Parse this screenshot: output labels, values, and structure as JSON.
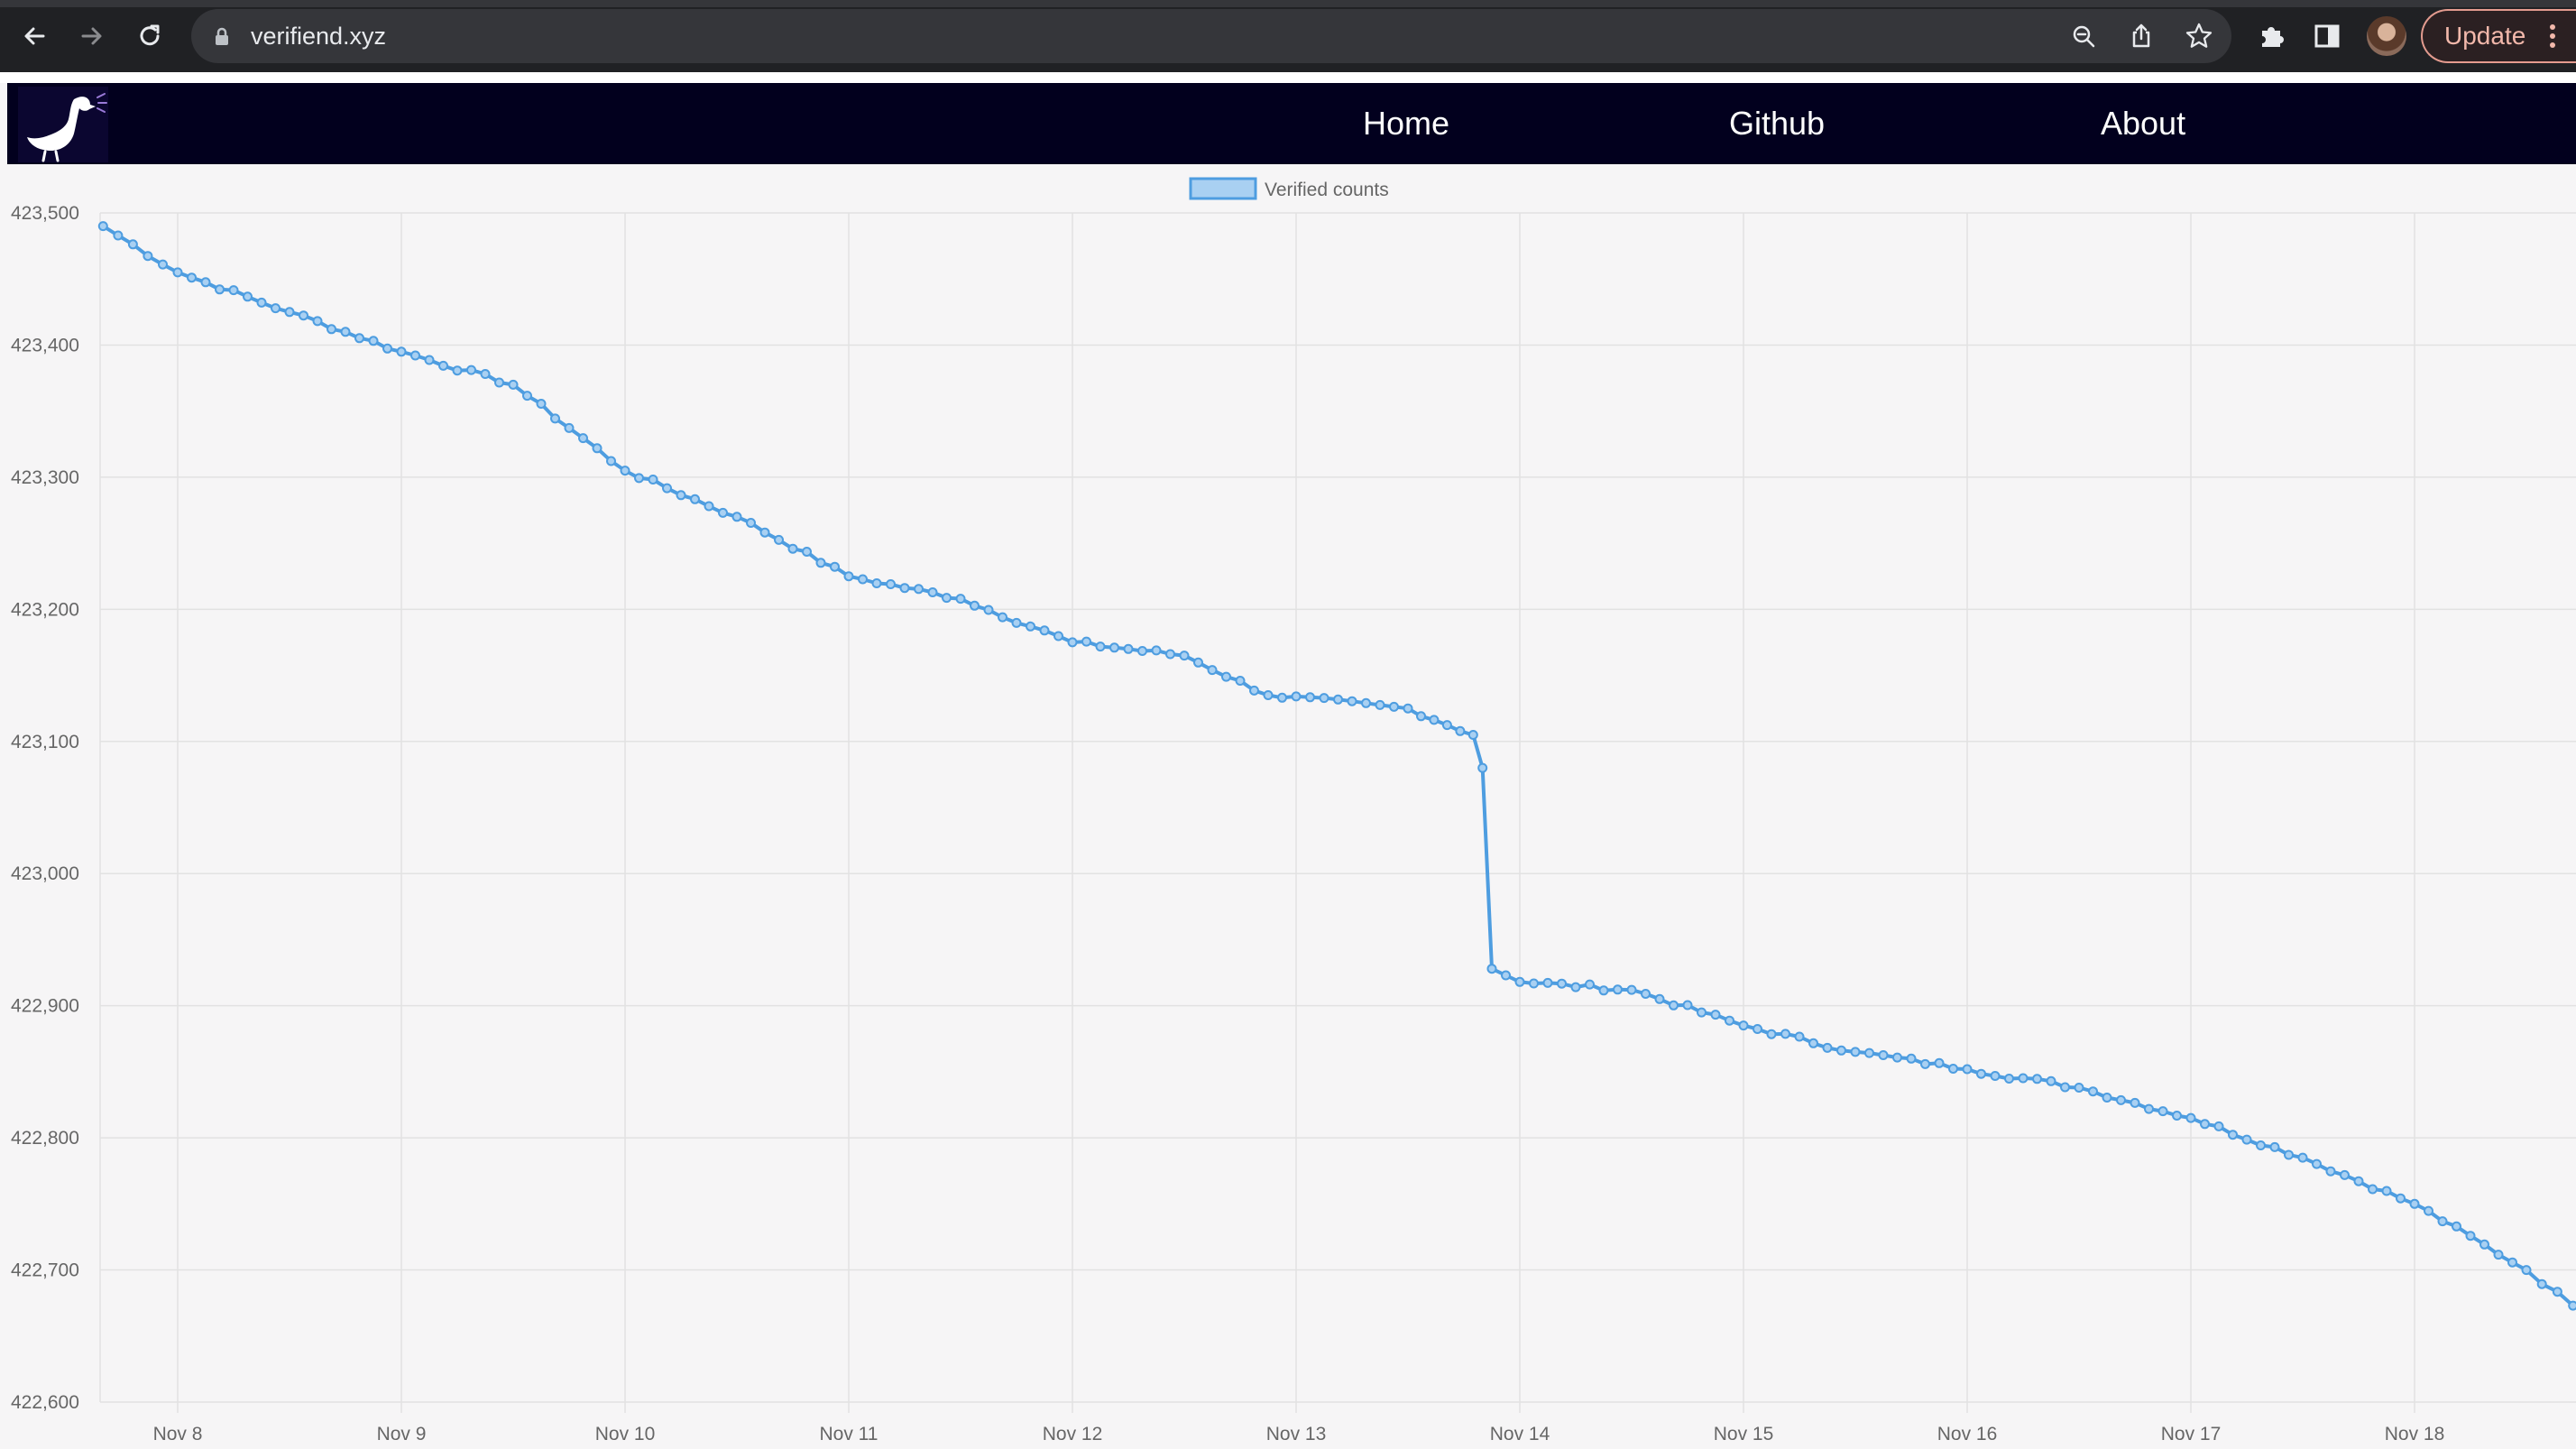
{
  "browser": {
    "url": "verifiend.xyz",
    "update_label": "Update",
    "icons": [
      "back-icon",
      "forward-icon",
      "reload-icon",
      "lock-icon",
      "zoom-icon",
      "share-icon",
      "bookmark-star-icon",
      "extensions-icon",
      "side-panel-icon",
      "avatar",
      "kebab-menu-icon"
    ]
  },
  "site": {
    "nav": [
      "Home",
      "Github",
      "About"
    ],
    "header_color": "#02001e"
  },
  "colors": {
    "line": "#4e9de0",
    "legend_fill": "#a9d0f2",
    "grid": "#e2e2e2"
  },
  "chart_data": {
    "type": "line",
    "legend_position": "top-center",
    "grid": true,
    "x_ticks": [
      "Nov 8",
      "Nov 9",
      "Nov 10",
      "Nov 11",
      "Nov 12",
      "Nov 13",
      "Nov 14",
      "Nov 15",
      "Nov 16",
      "Nov 17",
      "Nov 18"
    ],
    "y_ticks": [
      "423,500",
      "423,400",
      "423,300",
      "423,200",
      "423,100",
      "423,000",
      "422,900",
      "422,800",
      "422,700",
      "422,600"
    ],
    "ylim": [
      422600,
      423500
    ],
    "xlim": [
      "Nov 7 ~16:00",
      "Nov 18 ~17:00"
    ],
    "series": [
      {
        "name": "Verified counts",
        "points": [
          [
            "Nov 7 16:00",
            423490
          ],
          [
            "Nov 8 00:00",
            423455
          ],
          [
            "Nov 8 12:00",
            423425
          ],
          [
            "Nov 9 00:00",
            423395
          ],
          [
            "Nov 9 12:00",
            423370
          ],
          [
            "Nov 10 00:00",
            423305
          ],
          [
            "Nov 10 12:00",
            423270
          ],
          [
            "Nov 11 00:00",
            423225
          ],
          [
            "Nov 11 12:00",
            423208
          ],
          [
            "Nov 12 00:00",
            423175
          ],
          [
            "Nov 12 12:00",
            423165
          ],
          [
            "Nov 12 21:00",
            423135
          ],
          [
            "Nov 13 12:00",
            423125
          ],
          [
            "Nov 13 19:00",
            423105
          ],
          [
            "Nov 13 20:00",
            423080
          ],
          [
            "Nov 13 21:00",
            422928
          ],
          [
            "Nov 14 00:00",
            422918
          ],
          [
            "Nov 14 12:00",
            422912
          ],
          [
            "Nov 15 00:00",
            422885
          ],
          [
            "Nov 15 12:00",
            422865
          ],
          [
            "Nov 16 00:00",
            422852
          ],
          [
            "Nov 16 12:00",
            422838
          ],
          [
            "Nov 17 00:00",
            422815
          ],
          [
            "Nov 17 12:00",
            422785
          ],
          [
            "Nov 18 00:00",
            422750
          ],
          [
            "Nov 18 12:00",
            422700
          ],
          [
            "Nov 18 17:00",
            422673
          ]
        ]
      }
    ]
  }
}
